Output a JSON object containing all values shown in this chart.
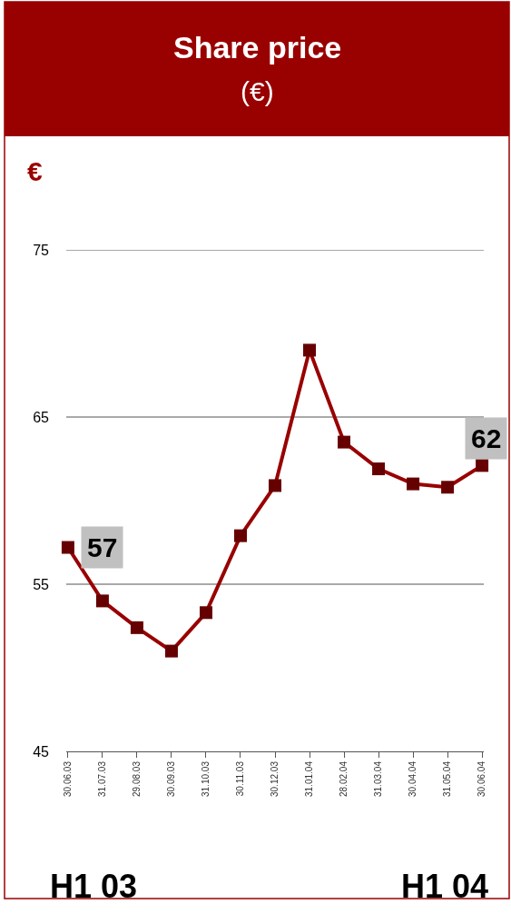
{
  "chart_data": {
    "type": "line",
    "title": "Share price",
    "subtitle": "(€)",
    "ylabel": "€",
    "categories": [
      "30.06.03",
      "31.07.03",
      "29.08.03",
      "30.09.03",
      "31.10.03",
      "30.11.03",
      "30.12.03",
      "31.01.04",
      "28.02.04",
      "31.03.04",
      "30.04.04",
      "31.05.04",
      "30.06.04"
    ],
    "series": [
      {
        "color": "#990000",
        "values": [
          57.2,
          54.0,
          52.4,
          51.0,
          53.3,
          57.9,
          60.9,
          69.0,
          63.5,
          61.9,
          61.0,
          60.8,
          62.1
        ],
        "value_labels": [
          "57",
          null,
          null,
          null,
          null,
          null,
          null,
          null,
          null,
          null,
          null,
          null,
          "62"
        ]
      }
    ],
    "ylim": [
      45,
      75
    ],
    "yticks": [
      45,
      55,
      65,
      75
    ],
    "grid": "y",
    "marker": "square",
    "line_style": "solid",
    "annotations": [
      "H1 03",
      "H1 04"
    ]
  }
}
